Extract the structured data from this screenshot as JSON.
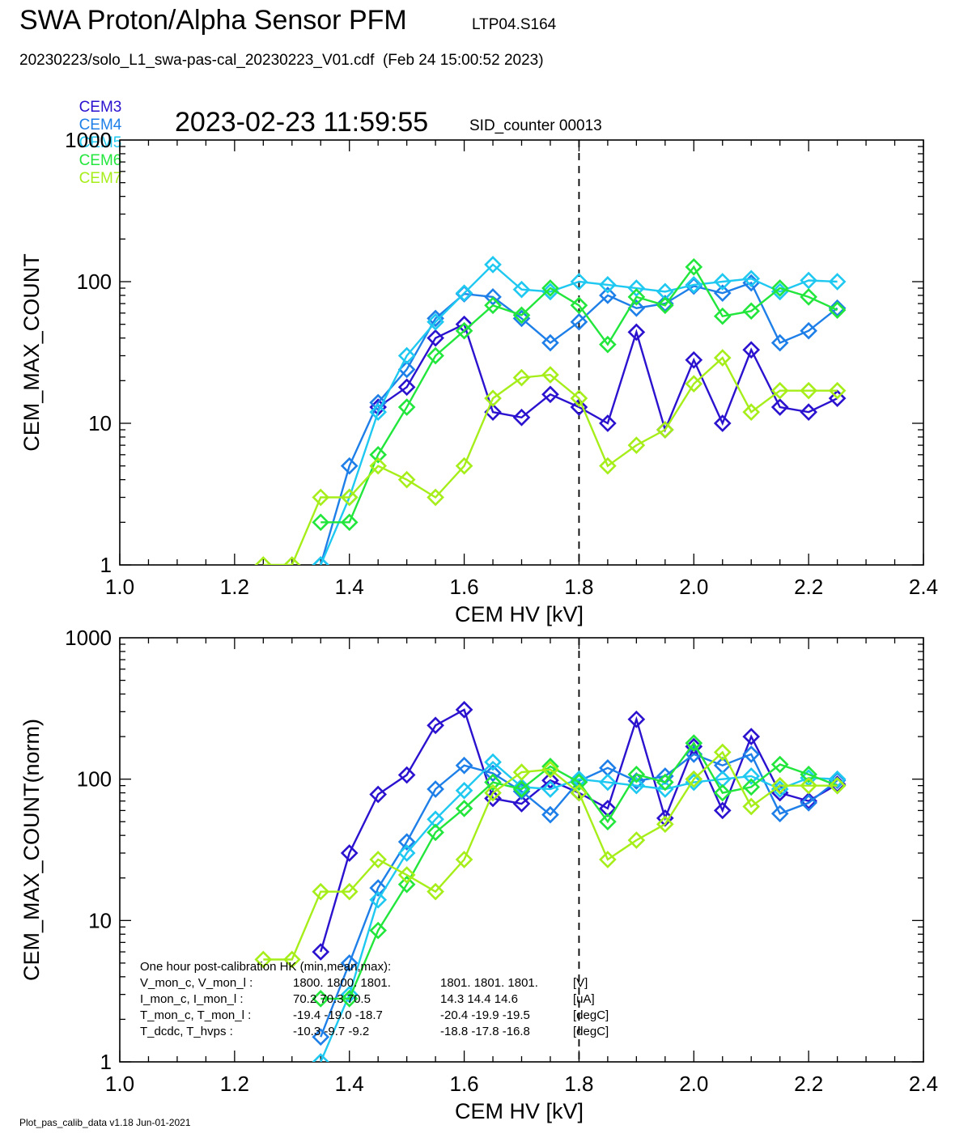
{
  "header": {
    "title": "SWA Proton/Alpha Sensor PFM",
    "id": "LTP04.S164",
    "file": "20230223/solo_L1_swa-pas-cal_20230223_V01.cdf  (Feb 24 15:00:52 2023)",
    "legend": [
      {
        "label": "CEM3",
        "color": "#2a12cf"
      },
      {
        "label": "CEM4",
        "color": "#1e7fe8"
      },
      {
        "label": "CEM5",
        "color": "#1ec8f0"
      },
      {
        "label": "CEM6",
        "color": "#22e63c"
      },
      {
        "label": "CEM7",
        "color": "#a6ee1a"
      }
    ],
    "timestamp": "2023-02-23 11:59:55",
    "sid": "SID_counter 00013"
  },
  "footer": "Plot_pas_calib_data v1.18 Jun-01-2021",
  "hk": {
    "title": "One hour post-calibration HK (min,mean,max):",
    "rows": [
      {
        "label": "V_mon_c, V_mon_l :",
        "a": "1800.   1800.  1801.",
        "b": "1801.  1801.  1801.",
        "unit": "[V]"
      },
      {
        "label": "I_mon_c,  I_mon_l :",
        "a": "70.2   70.3   70.5",
        "b": "14.3   14.4   14.6",
        "unit": "[uA]"
      },
      {
        "label": "T_mon_c, T_mon_l :",
        "a": "-19.4  -19.0  -18.7",
        "b": "-20.4  -19.9  -19.5",
        "unit": "[degC]"
      },
      {
        "label": "T_dcdc,    T_hvps :",
        "a": "-10.3   -9.7   -9.2",
        "b": "-18.8  -17.8  -16.8",
        "unit": "[degC]"
      }
    ]
  },
  "chart_data": [
    {
      "type": "line",
      "xlabel": "CEM HV [kV]",
      "ylabel": "CEM_MAX_COUNT",
      "xlim": [
        1.0,
        2.4
      ],
      "ylim": [
        1,
        1000
      ],
      "yscale": "log",
      "xticks": [
        "1.0",
        "1.2",
        "1.4",
        "1.6",
        "1.8",
        "2.0",
        "2.2",
        "2.4"
      ],
      "yticks": [
        "1",
        "10",
        "100",
        "1000"
      ],
      "vline": 1.8,
      "x": [
        1.25,
        1.3,
        1.35,
        1.4,
        1.45,
        1.5,
        1.55,
        1.6,
        1.65,
        1.7,
        1.75,
        1.8,
        1.85,
        1.9,
        1.95,
        2.0,
        2.05,
        2.1,
        2.15,
        2.2,
        2.25
      ],
      "series": [
        {
          "name": "CEM3",
          "color": "#2a12cf",
          "values": [
            null,
            null,
            null,
            null,
            13,
            18,
            40,
            50,
            12,
            11,
            16,
            13,
            10,
            44,
            9,
            28,
            10,
            33,
            13,
            12,
            15
          ]
        },
        {
          "name": "CEM4",
          "color": "#1e7fe8",
          "values": [
            null,
            null,
            1,
            5,
            14,
            24,
            55,
            82,
            78,
            55,
            37,
            52,
            80,
            65,
            70,
            93,
            83,
            98,
            37,
            45,
            65
          ]
        },
        {
          "name": "CEM5",
          "color": "#1ec8f0",
          "values": [
            null,
            null,
            1,
            3,
            12,
            30,
            52,
            83,
            132,
            88,
            85,
            100,
            95,
            90,
            85,
            95,
            100,
            105,
            85,
            102,
            100
          ]
        },
        {
          "name": "CEM6",
          "color": "#22e63c",
          "values": [
            null,
            null,
            2,
            2,
            6,
            13,
            30,
            45,
            68,
            58,
            90,
            68,
            36,
            78,
            68,
            127,
            57,
            62,
            90,
            78,
            63
          ]
        },
        {
          "name": "CEM7",
          "color": "#a6ee1a",
          "values": [
            1,
            1,
            3,
            3,
            5,
            4,
            3,
            5,
            15,
            21,
            22,
            15,
            5,
            7,
            9,
            19,
            29,
            12,
            17,
            17,
            17
          ]
        }
      ]
    },
    {
      "type": "line",
      "xlabel": "CEM HV [kV]",
      "ylabel": "CEM_MAX_COUNT(norm)",
      "xlim": [
        1.0,
        2.4
      ],
      "ylim": [
        1,
        1000
      ],
      "yscale": "log",
      "xticks": [
        "1.0",
        "1.2",
        "1.4",
        "1.6",
        "1.8",
        "2.0",
        "2.2",
        "2.4"
      ],
      "yticks": [
        "1",
        "10",
        "100",
        "1000"
      ],
      "vline": 1.8,
      "x": [
        1.25,
        1.3,
        1.35,
        1.4,
        1.45,
        1.5,
        1.55,
        1.6,
        1.65,
        1.7,
        1.75,
        1.8,
        1.85,
        1.9,
        1.95,
        2.0,
        2.05,
        2.1,
        2.15,
        2.2,
        2.25
      ],
      "series": [
        {
          "name": "CEM3",
          "color": "#2a12cf",
          "values": [
            null,
            null,
            6,
            30,
            78,
            107,
            240,
            310,
            73,
            67,
            98,
            80,
            62,
            265,
            53,
            170,
            60,
            200,
            80,
            70,
            92
          ]
        },
        {
          "name": "CEM4",
          "color": "#1e7fe8",
          "values": [
            null,
            null,
            1.5,
            5,
            17,
            36,
            85,
            125,
            110,
            82,
            56,
            97,
            120,
            97,
            105,
            150,
            125,
            150,
            57,
            68,
            98
          ]
        },
        {
          "name": "CEM5",
          "color": "#1ec8f0",
          "values": [
            null,
            null,
            1,
            3,
            14,
            30,
            52,
            83,
            132,
            88,
            85,
            100,
            95,
            90,
            85,
            95,
            100,
            105,
            85,
            102,
            100
          ]
        },
        {
          "name": "CEM6",
          "color": "#22e63c",
          "values": [
            null,
            null,
            2.8,
            2.8,
            8.5,
            18,
            42,
            62,
            95,
            85,
            123,
            95,
            50,
            108,
            95,
            180,
            80,
            88,
            127,
            108,
            90
          ]
        },
        {
          "name": "CEM7",
          "color": "#a6ee1a",
          "values": [
            5.3,
            5.3,
            16,
            16,
            27,
            21,
            16,
            27,
            80,
            112,
            117,
            80,
            27,
            37,
            48,
            100,
            155,
            64,
            90,
            90,
            90
          ]
        }
      ]
    }
  ]
}
